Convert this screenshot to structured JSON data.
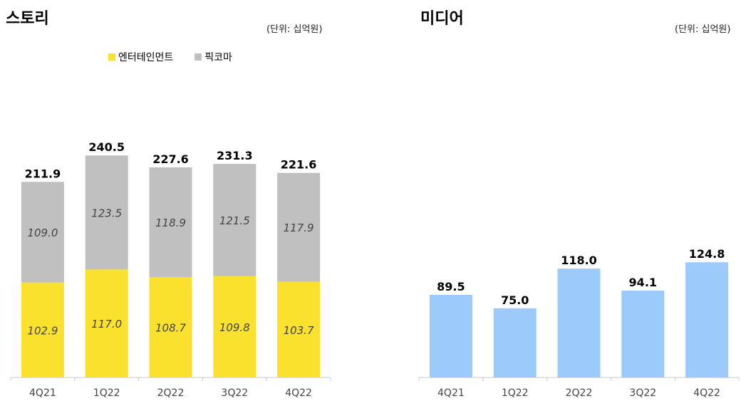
{
  "chart_data": [
    {
      "type": "bar",
      "stacked": true,
      "title": "스토리",
      "unit_label": "(단위: 십억원)",
      "categories": [
        "4Q21",
        "1Q22",
        "2Q22",
        "3Q22",
        "4Q22"
      ],
      "series": [
        {
          "name": "엔터테인먼트",
          "values": [
            102.9,
            117.0,
            108.7,
            109.8,
            103.7
          ],
          "color": "#f9e12e"
        },
        {
          "name": "픽코마",
          "values": [
            109.0,
            123.5,
            118.9,
            121.5,
            117.9
          ],
          "color": "#c0c0c0"
        }
      ],
      "totals": [
        211.9,
        240.5,
        227.6,
        231.3,
        221.6
      ],
      "value_labels": {
        "series": [
          [
            "102.9",
            "117.0",
            "108.7",
            "109.8",
            "103.7"
          ],
          [
            "109.0",
            "123.5",
            "118.9",
            "121.5",
            "117.9"
          ]
        ],
        "totals": [
          "211.9",
          "240.5",
          "227.6",
          "231.3",
          "221.6"
        ]
      },
      "legend_position": "top"
    },
    {
      "type": "bar",
      "title": "미디어",
      "unit_label": "(단위: 십억원)",
      "categories": [
        "4Q21",
        "1Q22",
        "2Q22",
        "3Q22",
        "4Q22"
      ],
      "values": [
        89.5,
        75.0,
        118.0,
        94.1,
        124.8
      ],
      "value_labels": [
        "89.5",
        "75.0",
        "118.0",
        "94.1",
        "124.8"
      ],
      "color": "#9ccbfb"
    }
  ]
}
